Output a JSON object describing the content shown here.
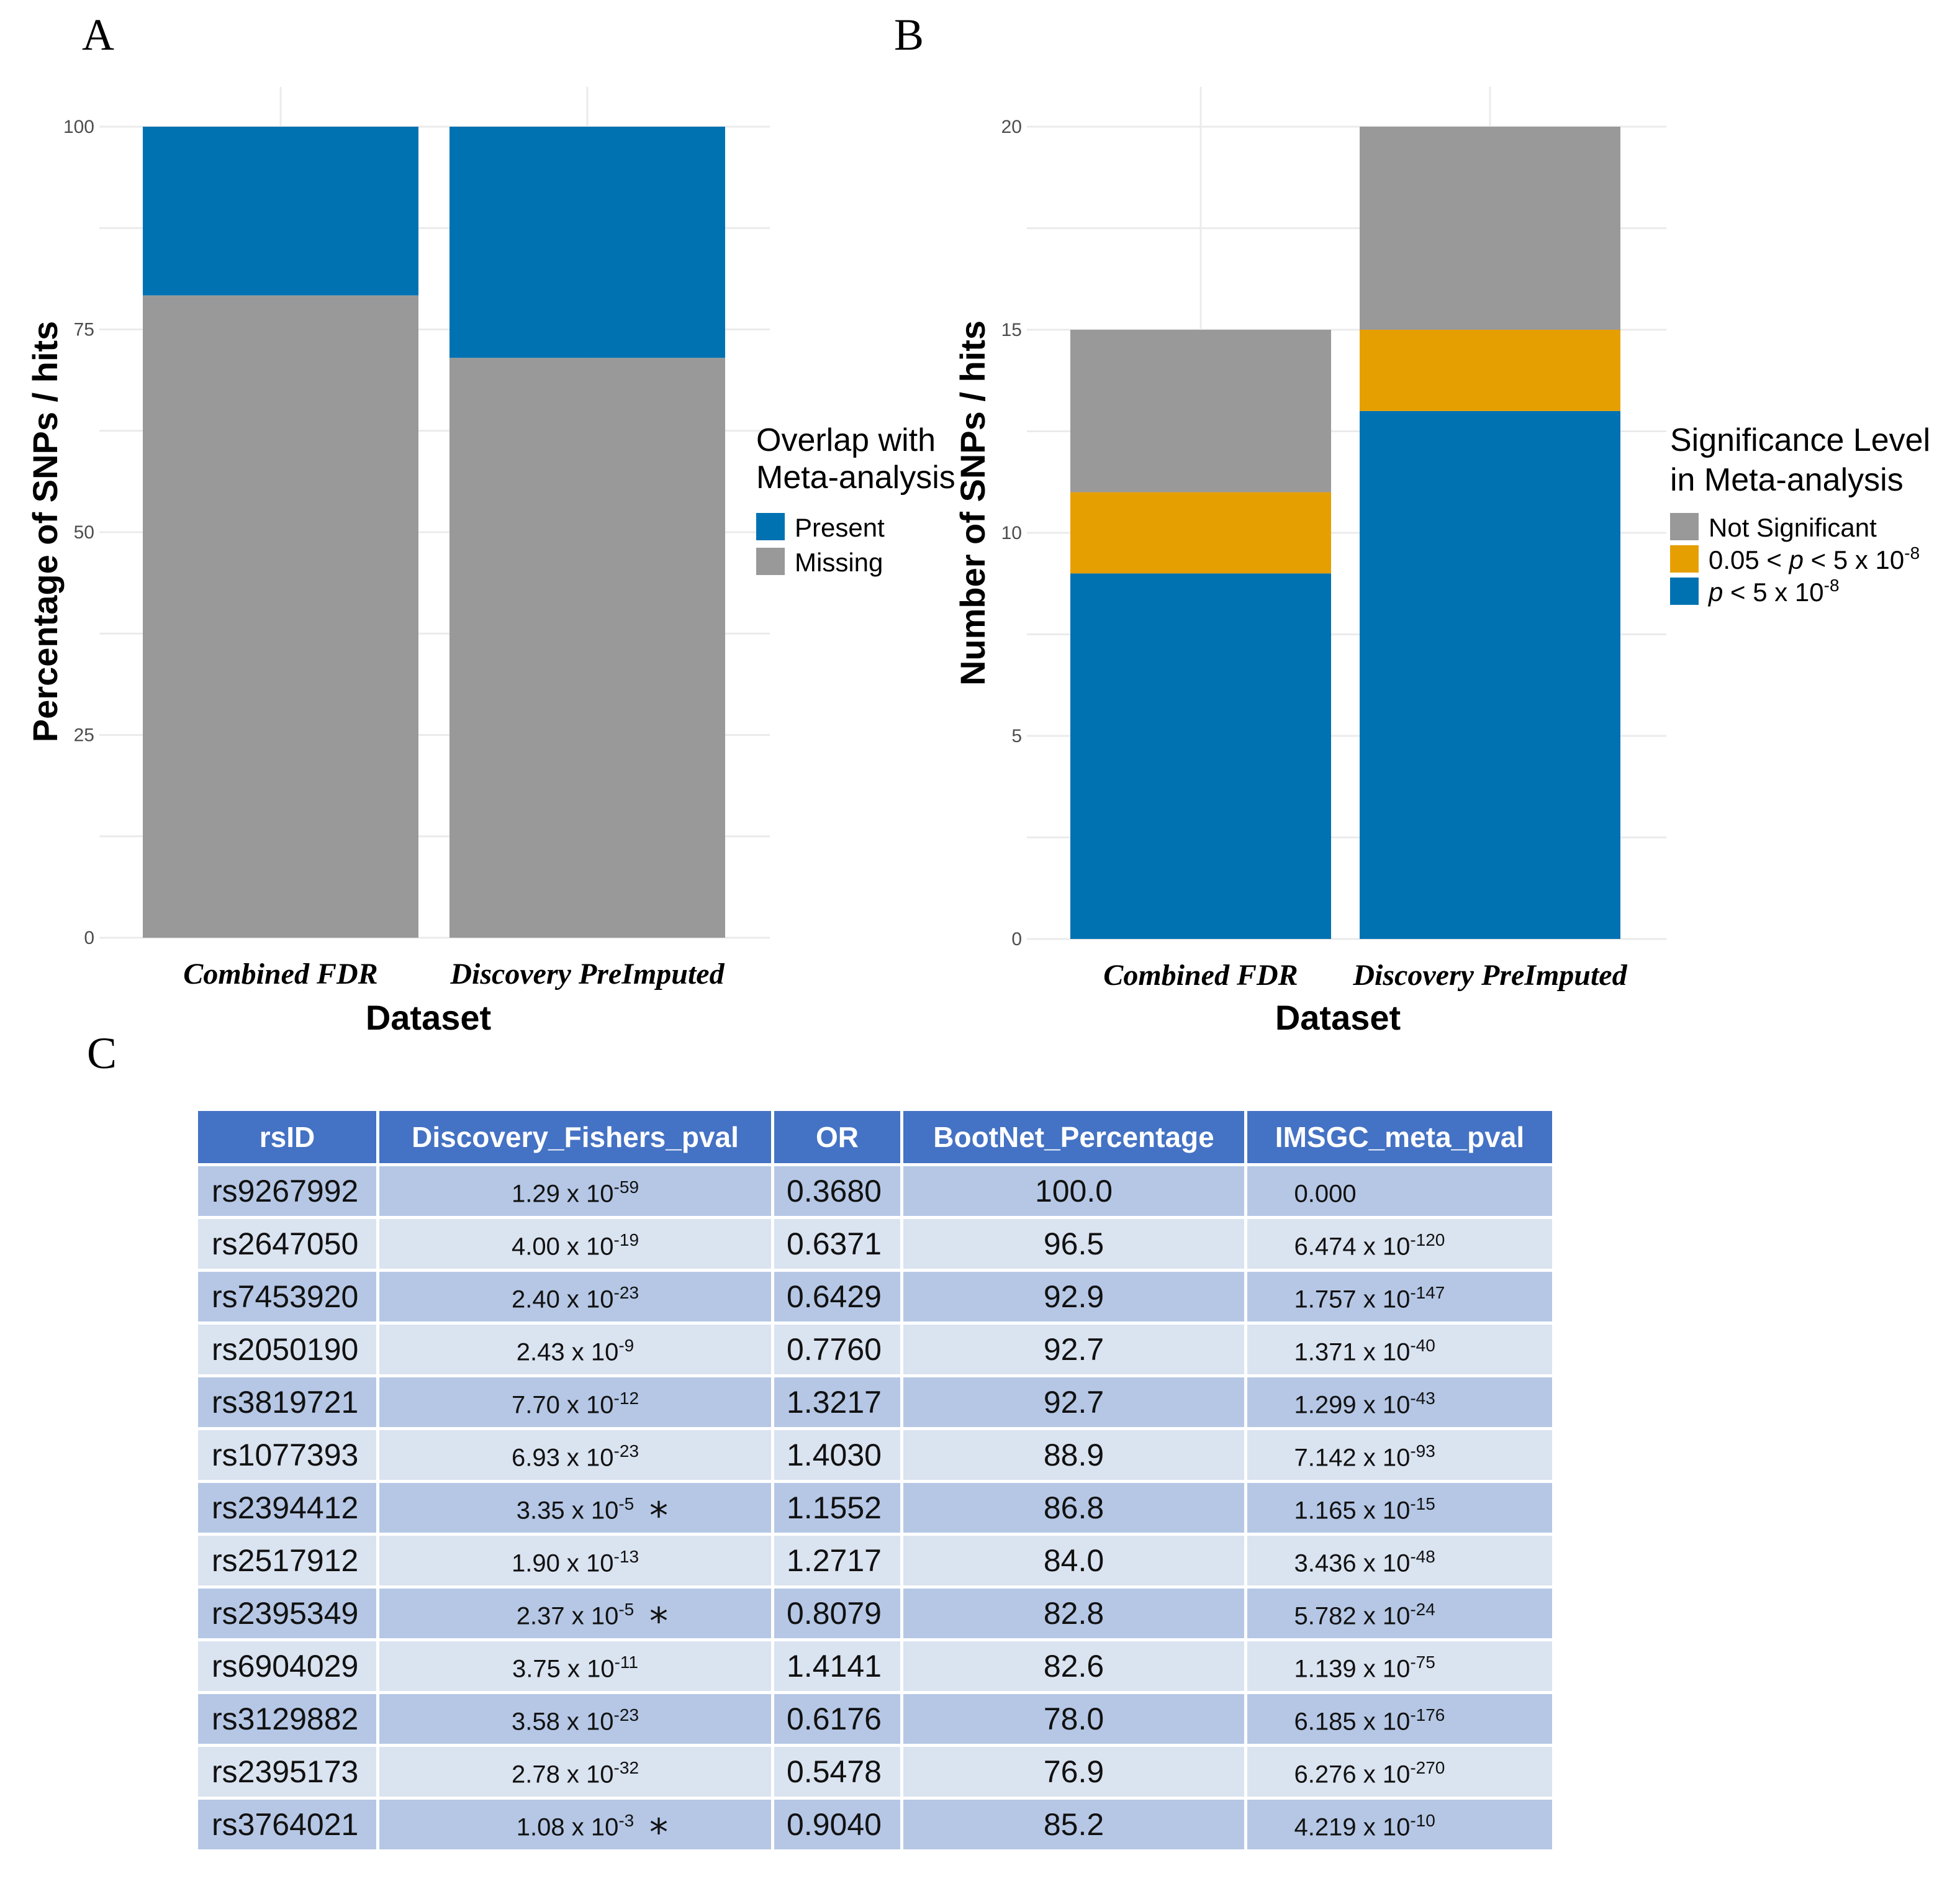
{
  "chart_data": [
    {
      "panel": "A",
      "type": "bar",
      "stacked": true,
      "categories": [
        "Combined FDR",
        "Discovery PreImputed"
      ],
      "series": [
        {
          "name": "Missing",
          "values": [
            79.2,
            71.5
          ],
          "color": "#999999"
        },
        {
          "name": "Present",
          "values": [
            20.8,
            28.5
          ],
          "color": "#0072b2"
        }
      ],
      "title": "",
      "xlabel": "Dataset",
      "ylabel": "Percentage of SNPs / hits",
      "ylim": [
        0,
        100
      ],
      "yticks": [
        0,
        25,
        50,
        75,
        100
      ],
      "legend": {
        "title_lines": [
          "Overlap with",
          "Meta-analysis"
        ],
        "entries": [
          "Present",
          "Missing"
        ],
        "colors": [
          "#0072b2",
          "#999999"
        ],
        "placement": "right"
      },
      "grid": true
    },
    {
      "panel": "B",
      "type": "bar",
      "stacked": true,
      "categories": [
        "Combined FDR",
        "Discovery PreImputed"
      ],
      "series": [
        {
          "name": "p < 5 x 10-8",
          "values": [
            9,
            13
          ],
          "color": "#0072b2"
        },
        {
          "name": "0.05 < p < 5 x 10-8",
          "values": [
            2,
            2
          ],
          "color": "#e69f00"
        },
        {
          "name": "Not Significant",
          "values": [
            4,
            5
          ],
          "color": "#999999"
        }
      ],
      "title": "",
      "xlabel": "Dataset",
      "ylabel": "Number of SNPs / hits",
      "ylim": [
        0,
        20
      ],
      "yticks": [
        0,
        5,
        10,
        15,
        20
      ],
      "legend": {
        "title_lines": [
          "Significance Level",
          "in Meta-analysis"
        ],
        "entries": [
          "Not Significant",
          "0.05 < p < 5 x 10-8",
          "p < 5 x 10-8"
        ],
        "colors": [
          "#999999",
          "#e69f00",
          "#0072b2"
        ],
        "placement": "right"
      },
      "grid": true
    }
  ],
  "panels": {
    "a": "A",
    "b": "B",
    "c": "C"
  },
  "legend_b_entries": {
    "not_sig": "Not Significant",
    "mid_pre": "0.05 < ",
    "mid_p": "p",
    "mid_post": " < 5 x 10",
    "mid_exp": "-8",
    "sig_p": "p",
    "sig_post": " < 5 x 10",
    "sig_exp": "-8"
  },
  "table": {
    "headers": [
      "rsID",
      "Discovery_Fishers_pval",
      "OR",
      "BootNet_Percentage",
      "IMSGC_meta_pval"
    ],
    "rows": [
      {
        "rsid": "rs9267992",
        "disc_m": "1.29 x 10",
        "disc_e": "-59",
        "star": "",
        "or": "0.3680",
        "boot": "100.0",
        "meta_m": "0.000",
        "meta_e": ""
      },
      {
        "rsid": "rs2647050",
        "disc_m": "4.00 x 10",
        "disc_e": "-19",
        "star": "",
        "or": "0.6371",
        "boot": "96.5",
        "meta_m": "6.474 x 10",
        "meta_e": "-120"
      },
      {
        "rsid": "rs7453920",
        "disc_m": "2.40 x 10",
        "disc_e": "-23",
        "star": "",
        "or": "0.6429",
        "boot": "92.9",
        "meta_m": "1.757 x 10",
        "meta_e": "-147"
      },
      {
        "rsid": "rs2050190",
        "disc_m": "2.43 x 10",
        "disc_e": "-9",
        "star": "",
        "or": "0.7760",
        "boot": "92.7",
        "meta_m": "1.371 x 10",
        "meta_e": "-40"
      },
      {
        "rsid": "rs3819721",
        "disc_m": "7.70 x 10",
        "disc_e": "-12",
        "star": "",
        "or": "1.3217",
        "boot": "92.7",
        "meta_m": "1.299 x 10",
        "meta_e": "-43"
      },
      {
        "rsid": "rs1077393",
        "disc_m": "6.93 x 10",
        "disc_e": "-23",
        "star": "",
        "or": "1.4030",
        "boot": "88.9",
        "meta_m": "7.142 x 10",
        "meta_e": "-93"
      },
      {
        "rsid": "rs2394412",
        "disc_m": "3.35 x 10",
        "disc_e": "-5",
        "star": "*",
        "or": "1.1552",
        "boot": "86.8",
        "meta_m": "1.165 x 10",
        "meta_e": "-15"
      },
      {
        "rsid": "rs2517912",
        "disc_m": "1.90 x 10",
        "disc_e": "-13",
        "star": "",
        "or": "1.2717",
        "boot": "84.0",
        "meta_m": "3.436 x 10",
        "meta_e": "-48"
      },
      {
        "rsid": "rs2395349",
        "disc_m": "2.37 x 10",
        "disc_e": "-5",
        "star": "*",
        "or": "0.8079",
        "boot": "82.8",
        "meta_m": "5.782 x 10",
        "meta_e": "-24"
      },
      {
        "rsid": "rs6904029",
        "disc_m": "3.75 x 10",
        "disc_e": "-11",
        "star": "",
        "or": "1.4141",
        "boot": "82.6",
        "meta_m": "1.139 x 10",
        "meta_e": "-75"
      },
      {
        "rsid": "rs3129882",
        "disc_m": "3.58 x 10",
        "disc_e": "-23",
        "star": "",
        "or": "0.6176",
        "boot": "78.0",
        "meta_m": "6.185 x 10",
        "meta_e": "-176"
      },
      {
        "rsid": "rs2395173",
        "disc_m": "2.78 x 10",
        "disc_e": "-32",
        "star": "",
        "or": "0.5478",
        "boot": "76.9",
        "meta_m": "6.276 x 10",
        "meta_e": "-270"
      },
      {
        "rsid": "rs3764021",
        "disc_m": "1.08 x 10",
        "disc_e": "-3",
        "star": "*",
        "or": "0.9040",
        "boot": "85.2",
        "meta_m": "4.219 x 10",
        "meta_e": "-10"
      }
    ]
  }
}
